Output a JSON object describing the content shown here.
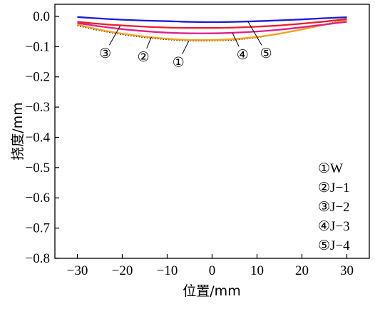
{
  "chart_data": {
    "type": "line",
    "xlabel": "位置/mm",
    "ylabel": "挠度/mm",
    "xlim": [
      -35,
      35
    ],
    "ylim": [
      -0.8,
      0.04
    ],
    "xticks": [
      {
        "value": -30,
        "label": "−30"
      },
      {
        "value": -20,
        "label": "−20"
      },
      {
        "value": -10,
        "label": "−10"
      },
      {
        "value": 0,
        "label": "0"
      },
      {
        "value": 10,
        "label": "10"
      },
      {
        "value": 20,
        "label": "20"
      },
      {
        "value": 30,
        "label": "30"
      }
    ],
    "yticks": [
      {
        "value": 0.0,
        "label": "0.0"
      },
      {
        "value": -0.1,
        "label": "−0.1"
      },
      {
        "value": -0.2,
        "label": "−0.2"
      },
      {
        "value": -0.3,
        "label": "−0.3"
      },
      {
        "value": -0.4,
        "label": "−0.4"
      },
      {
        "value": -0.5,
        "label": "−0.5"
      },
      {
        "value": -0.6,
        "label": "−0.6"
      },
      {
        "value": -0.7,
        "label": "−0.7"
      },
      {
        "value": -0.8,
        "label": "−0.8"
      }
    ],
    "grid": false,
    "legend_position": "bottom-right",
    "x": [
      -30,
      -25,
      -20,
      -15,
      -10,
      -5,
      0,
      5,
      10,
      15,
      20,
      25,
      30
    ],
    "series": [
      {
        "marker": "①",
        "name": "W",
        "color": "#000000",
        "dash": "dotted",
        "values": [
          -0.03,
          -0.046,
          -0.059,
          -0.069,
          -0.076,
          -0.08,
          -0.08,
          -0.077,
          -0.069,
          -0.057,
          -0.043,
          -0.027,
          -0.012
        ]
      },
      {
        "marker": "②",
        "name": "J−1",
        "color": "#f5a31a",
        "dash": "solid",
        "values": [
          -0.027,
          -0.044,
          -0.057,
          -0.067,
          -0.074,
          -0.078,
          -0.078,
          -0.075,
          -0.068,
          -0.057,
          -0.043,
          -0.028,
          -0.013
        ]
      },
      {
        "marker": "③",
        "name": "J−2",
        "color": "#e8202a",
        "dash": "solid",
        "values": [
          -0.018,
          -0.025,
          -0.03,
          -0.034,
          -0.037,
          -0.038,
          -0.038,
          -0.037,
          -0.034,
          -0.03,
          -0.024,
          -0.017,
          -0.009
        ]
      },
      {
        "marker": "④",
        "name": "J−3",
        "color": "#e0208a",
        "dash": "solid",
        "values": [
          -0.022,
          -0.033,
          -0.042,
          -0.049,
          -0.054,
          -0.056,
          -0.056,
          -0.054,
          -0.05,
          -0.044,
          -0.036,
          -0.027,
          -0.018
        ]
      },
      {
        "marker": "⑤",
        "name": "J−4",
        "color": "#1a1ad9",
        "dash": "solid",
        "values": [
          -0.002,
          -0.007,
          -0.011,
          -0.014,
          -0.016,
          -0.018,
          -0.019,
          -0.018,
          -0.016,
          -0.013,
          -0.01,
          -0.006,
          -0.003
        ]
      }
    ],
    "callouts": [
      {
        "label": "③",
        "x": -23.8,
        "y": -0.12,
        "target_x": -20.5,
        "target_y": -0.032
      },
      {
        "label": "②",
        "x": -15.3,
        "y": -0.132,
        "target_x": -13.5,
        "target_y": -0.068
      },
      {
        "label": "①",
        "x": -7.5,
        "y": -0.15,
        "target_x": -5.2,
        "target_y": -0.082
      },
      {
        "label": "④",
        "x": 6.8,
        "y": -0.125,
        "target_x": 4.5,
        "target_y": -0.054
      },
      {
        "label": "⑤",
        "x": 12.0,
        "y": -0.12,
        "target_x": 8.0,
        "target_y": -0.017
      }
    ]
  }
}
